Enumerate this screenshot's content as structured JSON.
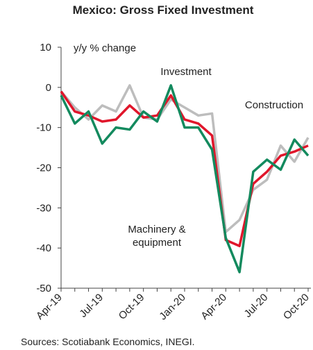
{
  "chart_data": {
    "type": "line",
    "title": "Mexico: Gross Fixed Investment",
    "y_label": "y/y % change",
    "source": "Sources: Scotiabank Economics, INEGI.",
    "categories": [
      "Apr-19",
      null,
      null,
      "Jul-19",
      null,
      null,
      "Oct-19",
      null,
      null,
      "Jan-20",
      null,
      null,
      "Apr-20",
      null,
      null,
      "Jul-20",
      null,
      null,
      "Oct-20"
    ],
    "series": [
      {
        "name": "Investment",
        "color": "#e0162b",
        "values": [
          -1,
          -6,
          -7,
          -8.5,
          -8,
          -4.5,
          -7.5,
          -7,
          -2,
          -8,
          -9,
          -12,
          -38,
          -39.5,
          -24,
          -21,
          -17,
          -16,
          -14.5
        ]
      },
      {
        "name": "Construction",
        "color": "#bdbdbd",
        "values": [
          -1,
          -5,
          -8,
          -4.5,
          -6,
          0.5,
          -7.5,
          -8,
          -3,
          -5,
          -7,
          -6.5,
          -36,
          -33,
          -25.5,
          -23,
          -14.5,
          -18.5,
          -12.5
        ]
      },
      {
        "name": "Machinery & equipment",
        "color": "#138a5e",
        "values": [
          -2,
          -9,
          -6,
          -14,
          -10,
          -10.5,
          -6,
          -8.5,
          0.5,
          -10,
          -10,
          -15.5,
          -37.5,
          -46,
          -21,
          -18,
          -20.5,
          -13,
          -17
        ]
      }
    ],
    "ylim": [
      -50,
      10
    ],
    "yticks": [
      -50,
      -40,
      -30,
      -20,
      -10,
      0,
      10
    ]
  }
}
